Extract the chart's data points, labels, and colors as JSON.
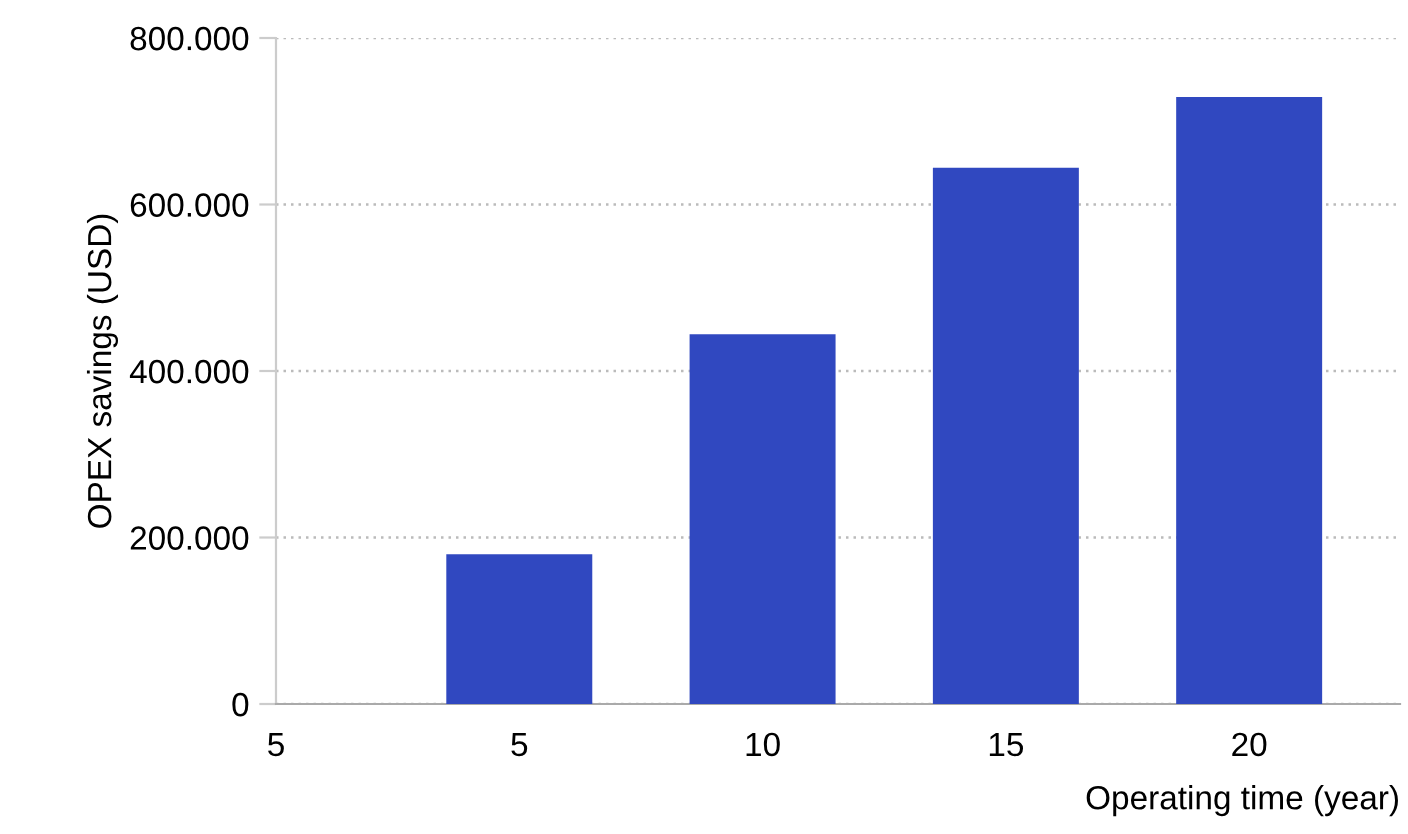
{
  "chart_data": {
    "type": "bar",
    "xlabel": "Operating time (year)",
    "ylabel": "OPEX savings (USD)",
    "categories": [
      "5",
      "5",
      "10",
      "15",
      "20"
    ],
    "values": [
      null,
      180000,
      444000,
      644000,
      729000
    ],
    "color": "#3048c0",
    "ylim": [
      0,
      800000
    ],
    "yticks": [
      0,
      {
        "value": 200000,
        "label": "200.000"
      },
      {
        "value": 400000,
        "label": "400.000"
      },
      {
        "value": 600000,
        "label": "600.000"
      },
      {
        "value": 800000,
        "label": "800.000"
      }
    ],
    "grid": "y"
  }
}
